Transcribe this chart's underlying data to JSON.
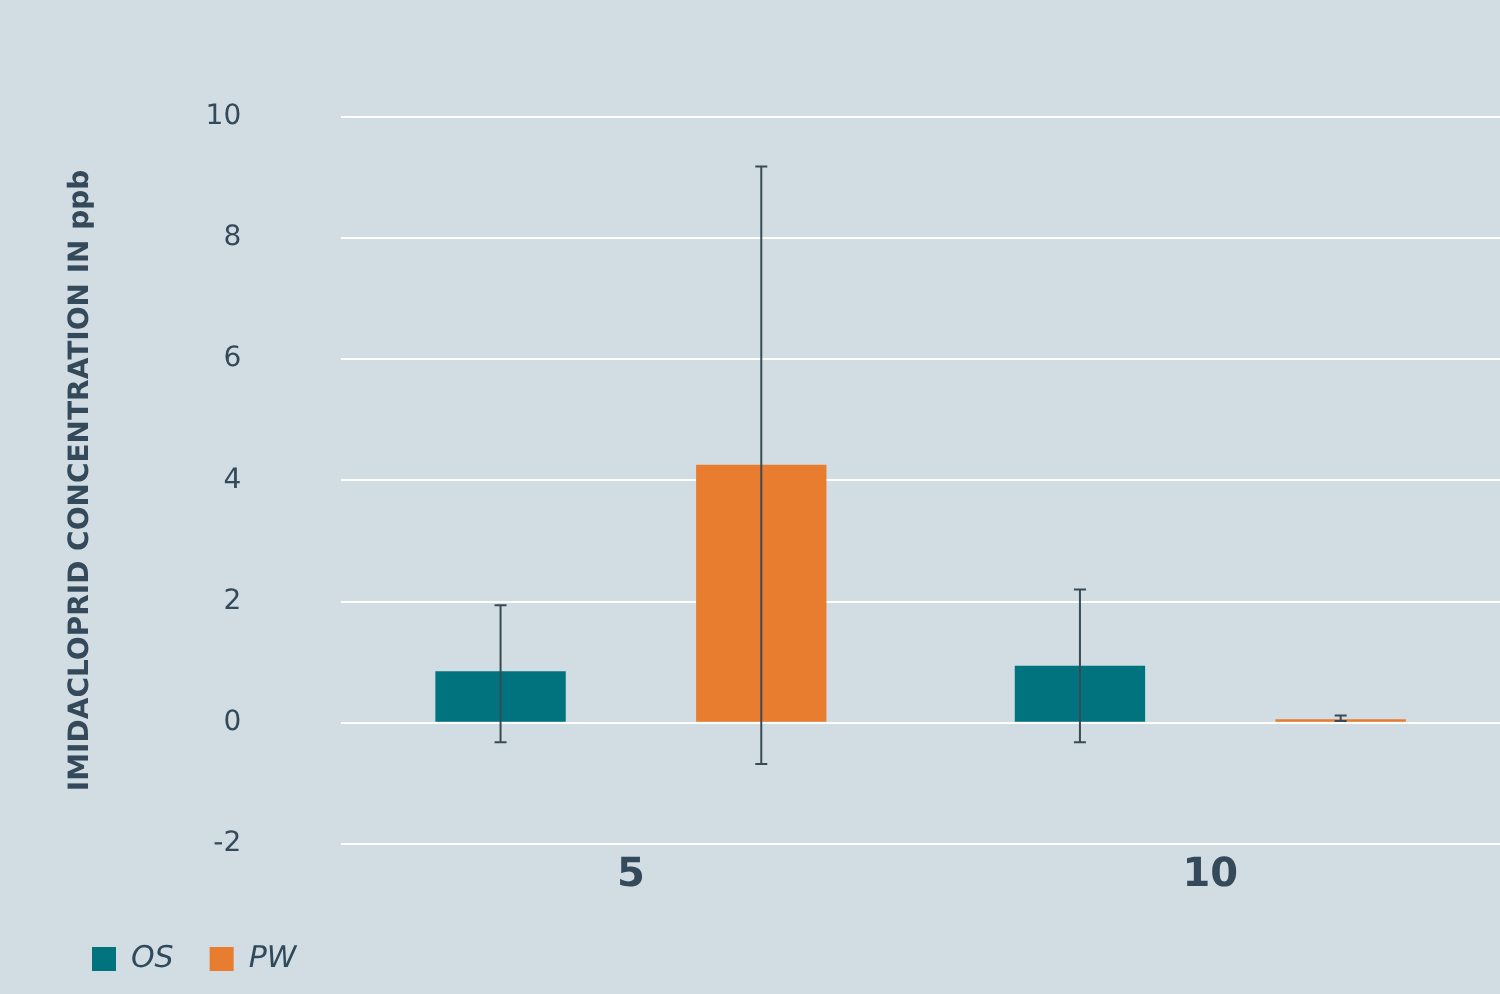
{
  "chart_data": {
    "type": "bar",
    "ylabel": "IMIDACLOPRID CONCENTRATION IN ppb",
    "categories": [
      "5",
      "10"
    ],
    "series": [
      {
        "name": "OS",
        "color": "#00737f",
        "values": [
          0.85,
          0.94
        ],
        "errors": [
          [
            -0.32,
            1.94
          ],
          [
            -0.32,
            2.2
          ]
        ]
      },
      {
        "name": "PW",
        "color": "#e97d2f",
        "values": [
          4.26,
          0.06
        ],
        "errors": [
          [
            -0.68,
            9.18
          ],
          [
            0.03,
            0.12
          ]
        ]
      }
    ],
    "ylim": [
      -2,
      10
    ],
    "yticks": [
      -2,
      0,
      2,
      4,
      6,
      8,
      10
    ],
    "grid": "y",
    "legend": "bottom left"
  }
}
